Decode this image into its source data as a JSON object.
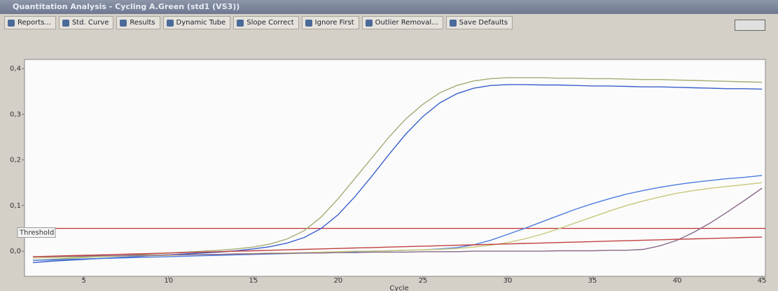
{
  "window": {
    "title": "Quantitation Analysis - Cycling A.Green (std1 (VS3))"
  },
  "toolbar": {
    "buttons": [
      "Reports...",
      "Std. Curve",
      "Results",
      "Dynamic Tube",
      "Slope Correct",
      "Ignore First",
      "Outlier Removal...",
      "Save Defaults"
    ]
  },
  "chart_data": {
    "type": "line",
    "xlabel": "Cycle",
    "x": [
      2,
      3,
      4,
      5,
      6,
      7,
      8,
      9,
      10,
      11,
      12,
      13,
      14,
      15,
      16,
      17,
      18,
      19,
      20,
      21,
      22,
      23,
      24,
      25,
      26,
      27,
      28,
      29,
      30,
      31,
      32,
      33,
      34,
      35,
      36,
      37,
      38,
      39,
      40,
      41,
      42,
      43,
      44,
      45
    ],
    "xlim": [
      1.5,
      45.2
    ],
    "xticks": [
      5,
      10,
      15,
      20,
      25,
      30,
      35,
      40,
      45
    ],
    "ylim": [
      -0.055,
      0.42
    ],
    "yticks": [
      {
        "value": 0,
        "label": "0,0"
      },
      {
        "value": 0.1,
        "label": "0,1"
      },
      {
        "value": 0.2,
        "label": "0,2"
      },
      {
        "value": 0.3,
        "label": "0,3"
      },
      {
        "value": 0.4,
        "label": "0,4"
      }
    ],
    "grid": false,
    "threshold": {
      "value": 0.05,
      "label": "Threshold",
      "color": "#c03030"
    },
    "series": [
      {
        "color": "#a3ad74",
        "values": [
          -0.02,
          -0.018,
          -0.016,
          -0.014,
          -0.012,
          -0.01,
          -0.008,
          -0.006,
          -0.004,
          -0.002,
          0,
          0.002,
          0.005,
          0.009,
          0.016,
          0.027,
          0.045,
          0.075,
          0.115,
          0.16,
          0.205,
          0.25,
          0.29,
          0.322,
          0.347,
          0.363,
          0.373,
          0.378,
          0.38,
          0.38,
          0.38,
          0.379,
          0.379,
          0.378,
          0.378,
          0.377,
          0.376,
          0.376,
          0.375,
          0.374,
          0.373,
          0.372,
          0.371,
          0.37
        ]
      },
      {
        "color": "#3a5fcd",
        "values": [
          -0.025,
          -0.022,
          -0.02,
          -0.018,
          -0.016,
          -0.014,
          -0.012,
          -0.01,
          -0.008,
          -0.006,
          -0.004,
          -0.002,
          0.001,
          0.005,
          0.01,
          0.018,
          0.03,
          0.05,
          0.08,
          0.12,
          0.165,
          0.212,
          0.257,
          0.295,
          0.325,
          0.345,
          0.357,
          0.363,
          0.365,
          0.365,
          0.364,
          0.364,
          0.363,
          0.362,
          0.362,
          0.361,
          0.36,
          0.36,
          0.359,
          0.358,
          0.357,
          0.356,
          0.356,
          0.355
        ]
      },
      {
        "color": "#4a7be0",
        "values": [
          -0.02,
          -0.019,
          -0.018,
          -0.017,
          -0.016,
          -0.015,
          -0.014,
          -0.013,
          -0.012,
          -0.011,
          -0.01,
          -0.009,
          -0.008,
          -0.007,
          -0.006,
          -0.005,
          -0.004,
          -0.003,
          -0.002,
          -0.001,
          0,
          0.001,
          0.002,
          0.003,
          0.005,
          0.008,
          0.014,
          0.024,
          0.037,
          0.05,
          0.064,
          0.078,
          0.092,
          0.104,
          0.115,
          0.125,
          0.133,
          0.14,
          0.146,
          0.151,
          0.155,
          0.159,
          0.162,
          0.166
        ]
      },
      {
        "color": "#c8c87a",
        "values": [
          -0.015,
          -0.014,
          -0.013,
          -0.013,
          -0.012,
          -0.011,
          -0.01,
          -0.01,
          -0.009,
          -0.008,
          -0.007,
          -0.007,
          -0.006,
          -0.005,
          -0.004,
          -0.004,
          -0.003,
          -0.002,
          -0.001,
          0,
          0,
          0.001,
          0.002,
          0.003,
          0.004,
          0.006,
          0.009,
          0.013,
          0.019,
          0.027,
          0.037,
          0.049,
          0.062,
          0.075,
          0.088,
          0.1,
          0.11,
          0.119,
          0.127,
          0.133,
          0.138,
          0.142,
          0.146,
          0.15
        ]
      },
      {
        "color": "#8a6a8a",
        "values": [
          -0.012,
          -0.012,
          -0.011,
          -0.011,
          -0.01,
          -0.01,
          -0.009,
          -0.009,
          -0.008,
          -0.008,
          -0.007,
          -0.007,
          -0.006,
          -0.006,
          -0.005,
          -0.005,
          -0.004,
          -0.004,
          -0.003,
          -0.003,
          -0.002,
          -0.002,
          -0.002,
          -0.001,
          -0.001,
          -0.001,
          0,
          0,
          0,
          0,
          0,
          0.001,
          0.001,
          0.001,
          0.002,
          0.002,
          0.004,
          0.012,
          0.024,
          0.042,
          0.063,
          0.087,
          0.112,
          0.138
        ]
      },
      {
        "color": "#c04040",
        "values": [
          -0.012,
          -0.011,
          -0.01,
          -0.009,
          -0.008,
          -0.007,
          -0.006,
          -0.005,
          -0.004,
          -0.003,
          -0.002,
          -0.001,
          0,
          0.001,
          0.002,
          0.003,
          0.004,
          0.005,
          0.006,
          0.007,
          0.008,
          0.009,
          0.01,
          0.011,
          0.012,
          0.013,
          0.014,
          0.015,
          0.016,
          0.017,
          0.018,
          0.019,
          0.02,
          0.021,
          0.022,
          0.023,
          0.024,
          0.025,
          0.026,
          0.027,
          0.028,
          0.029,
          0.03,
          0.031
        ]
      }
    ]
  }
}
